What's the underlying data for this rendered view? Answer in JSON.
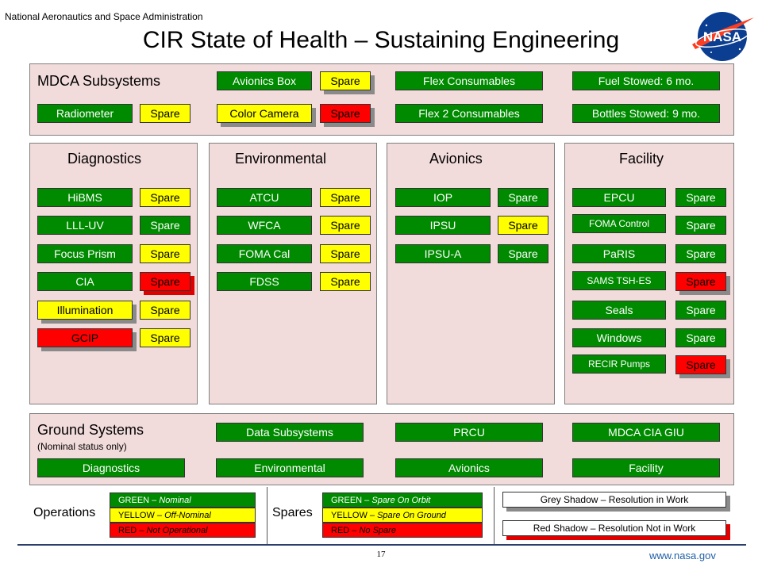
{
  "header": {
    "agency": "National Aeronautics and Space Administration",
    "title": "CIR State of Health – Sustaining Engineering",
    "logo_text": "NASA"
  },
  "mdca": {
    "title": "MDCA Subsystems",
    "items": [
      {
        "label": "Avionics Box",
        "status": "green"
      },
      {
        "label": "Spare",
        "status": "yellow",
        "shadow": "grey"
      },
      {
        "label": "Flex Consumables",
        "status": "green"
      },
      {
        "label": "Fuel Stowed: 6 mo.",
        "status": "green"
      },
      {
        "label": "Radiometer",
        "status": "green"
      },
      {
        "label": "Spare",
        "status": "yellow"
      },
      {
        "label": "Color Camera",
        "status": "yellow",
        "shadow": "grey"
      },
      {
        "label": "Spare",
        "status": "red",
        "shadow": "grey"
      },
      {
        "label": "Flex 2 Consumables",
        "status": "green"
      },
      {
        "label": "Bottles Stowed: 9 mo.",
        "status": "green"
      }
    ]
  },
  "diagnostics": {
    "title": "Diagnostics",
    "items": [
      {
        "label": "HiBMS",
        "status": "green"
      },
      {
        "label": "Spare",
        "status": "yellow"
      },
      {
        "label": "LLL-UV",
        "status": "green"
      },
      {
        "label": "Spare",
        "status": "green"
      },
      {
        "label": "Focus Prism",
        "status": "green"
      },
      {
        "label": "Spare",
        "status": "yellow"
      },
      {
        "label": "CIA",
        "status": "green"
      },
      {
        "label": "Spare",
        "status": "red",
        "shadow": "red"
      },
      {
        "label": "Illumination",
        "status": "yellow",
        "shadow": "grey"
      },
      {
        "label": "Spare",
        "status": "yellow"
      },
      {
        "label": "GCIP",
        "status": "red",
        "shadow": "grey"
      },
      {
        "label": "Spare",
        "status": "yellow"
      }
    ]
  },
  "environmental": {
    "title": "Environmental",
    "items": [
      {
        "label": "ATCU",
        "status": "green"
      },
      {
        "label": "Spare",
        "status": "yellow"
      },
      {
        "label": "WFCA",
        "status": "green"
      },
      {
        "label": "Spare",
        "status": "yellow"
      },
      {
        "label": "FOMA Cal",
        "status": "green"
      },
      {
        "label": "Spare",
        "status": "yellow"
      },
      {
        "label": "FDSS",
        "status": "green"
      },
      {
        "label": "Spare",
        "status": "yellow"
      }
    ]
  },
  "avionics": {
    "title": "Avionics",
    "items": [
      {
        "label": "IOP",
        "status": "green"
      },
      {
        "label": "Spare",
        "status": "green"
      },
      {
        "label": "IPSU",
        "status": "green"
      },
      {
        "label": "Spare",
        "status": "yellow"
      },
      {
        "label": "IPSU-A",
        "status": "green"
      },
      {
        "label": "Spare",
        "status": "green"
      }
    ]
  },
  "facility": {
    "title": "Facility",
    "items": [
      {
        "label": "EPCU",
        "status": "green"
      },
      {
        "label": "Spare",
        "status": "green"
      },
      {
        "label": "FOMA Control",
        "status": "green"
      },
      {
        "label": "Spare",
        "status": "green"
      },
      {
        "label": "PaRIS",
        "status": "green"
      },
      {
        "label": "Spare",
        "status": "green"
      },
      {
        "label": "SAMS TSH-ES",
        "status": "green"
      },
      {
        "label": "Spare",
        "status": "red",
        "shadow": "grey"
      },
      {
        "label": "Seals",
        "status": "green"
      },
      {
        "label": "Spare",
        "status": "green"
      },
      {
        "label": "Windows",
        "status": "green"
      },
      {
        "label": "Spare",
        "status": "green"
      },
      {
        "label": "RECIR Pumps",
        "status": "green"
      },
      {
        "label": "Spare",
        "status": "red",
        "shadow": "grey"
      }
    ]
  },
  "ground": {
    "title": "Ground Systems",
    "subtitle": "(Nominal status only)",
    "items": [
      {
        "label": "Data Subsystems",
        "status": "green"
      },
      {
        "label": "PRCU",
        "status": "green"
      },
      {
        "label": "MDCA CIA GIU",
        "status": "green"
      },
      {
        "label": "Diagnostics",
        "status": "green"
      },
      {
        "label": "Environmental",
        "status": "green"
      },
      {
        "label": "Avionics",
        "status": "green"
      },
      {
        "label": "Facility",
        "status": "green"
      }
    ]
  },
  "legend": {
    "operations_label": "Operations",
    "operations": [
      {
        "key": "GREEN",
        "sep": " – ",
        "desc": "Nominal"
      },
      {
        "key": "YELLOW",
        "sep": " – ",
        "desc": "Off-Nominal"
      },
      {
        "key": "RED",
        "sep": " – ",
        "desc": "Not Operational"
      }
    ],
    "spares_label": "Spares",
    "spares": [
      {
        "key": "GREEN",
        "sep": " – ",
        "desc": "Spare On Orbit"
      },
      {
        "key": "YELLOW",
        "sep": " – ",
        "desc": "Spare On Ground"
      },
      {
        "key": "RED",
        "sep": " – ",
        "desc": "No Spare"
      }
    ],
    "grey_shadow": "Grey Shadow – Resolution in Work",
    "red_shadow": "Red Shadow – Resolution Not in Work"
  },
  "footer": {
    "page": "17",
    "url": "www.nasa.gov"
  },
  "colors": {
    "green": "#008a00",
    "yellow": "#ffff00",
    "red": "#ff0000",
    "panel": "#f2dcdb",
    "grey_shadow": "#8a8a8a",
    "red_shadow": "#e00000"
  }
}
